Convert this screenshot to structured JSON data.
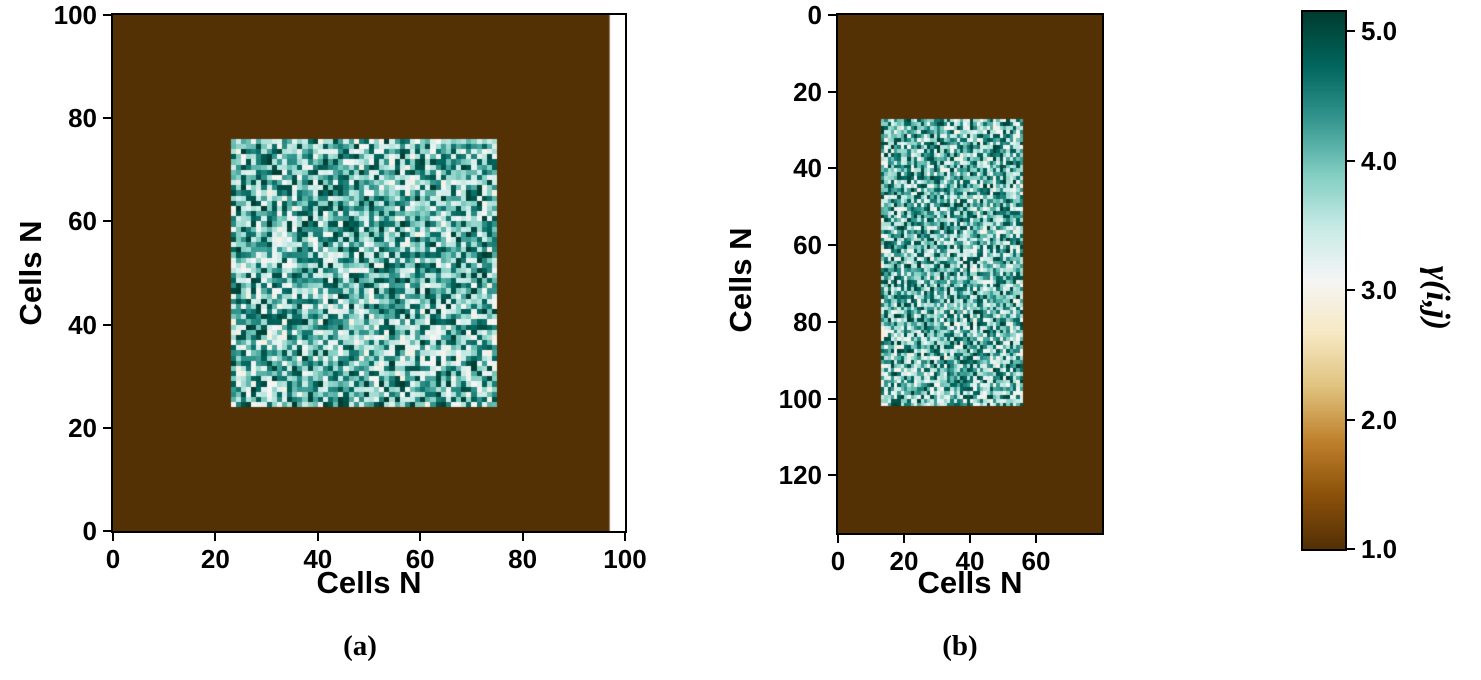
{
  "figure": {
    "background_color": "#ffffff"
  },
  "chart_data": [
    {
      "type": "heatmap",
      "panel": "a",
      "caption": "(a)",
      "xlabel": "Cells N",
      "ylabel": "Cells N",
      "xlim": [
        0,
        100
      ],
      "ylim": [
        0,
        100
      ],
      "x_ticks": [
        0,
        20,
        40,
        60,
        80,
        100
      ],
      "y_ticks": [
        0,
        20,
        40,
        60,
        80,
        100
      ],
      "y_axis_direction": "up",
      "grid": false,
      "data_extent": {
        "x0": 0,
        "x1": 97,
        "y0": 0,
        "y1": 100
      },
      "background_value": 1.0,
      "noise_region": {
        "x0": 23,
        "x1": 75,
        "y0": 24,
        "y1": 76
      },
      "noise_value_range": [
        2.9,
        5.15
      ],
      "cell_size": 1,
      "seed": 1234
    },
    {
      "type": "heatmap",
      "panel": "b",
      "caption": "(b)",
      "xlabel": "Cells N",
      "ylabel": "Cells N",
      "xlim": [
        0,
        80
      ],
      "ylim": [
        0,
        135
      ],
      "x_ticks": [
        0,
        20,
        40,
        60
      ],
      "y_ticks": [
        0,
        20,
        40,
        60,
        80,
        100,
        120
      ],
      "y_axis_direction": "down",
      "grid": false,
      "data_extent": {
        "x0": 0,
        "x1": 80,
        "y0": 0,
        "y1": 135
      },
      "background_value": 1.0,
      "noise_region": {
        "x0": 13,
        "x1": 56,
        "y0": 27,
        "y1": 102
      },
      "noise_value_range": [
        2.9,
        5.15
      ],
      "cell_size": 1,
      "seed": 5678
    }
  ],
  "colorbar": {
    "label": "γ(i,j)",
    "tick_labels": [
      "5.0",
      "4.0",
      "3.0",
      "2.0",
      "1.0"
    ],
    "tick_values": [
      5.0,
      4.0,
      3.0,
      2.0,
      1.0
    ],
    "vmin": 1.0,
    "vmax": 5.15,
    "colormap": "BrBG",
    "stops": [
      [
        0.0,
        "#543005"
      ],
      [
        0.1,
        "#8c510a"
      ],
      [
        0.2,
        "#bf812d"
      ],
      [
        0.3,
        "#dfc27d"
      ],
      [
        0.4,
        "#f6e8c3"
      ],
      [
        0.5,
        "#f5f5f5"
      ],
      [
        0.6,
        "#c7eae5"
      ],
      [
        0.7,
        "#80cdc1"
      ],
      [
        0.8,
        "#35978f"
      ],
      [
        0.9,
        "#01665e"
      ],
      [
        1.0,
        "#003c30"
      ]
    ]
  }
}
